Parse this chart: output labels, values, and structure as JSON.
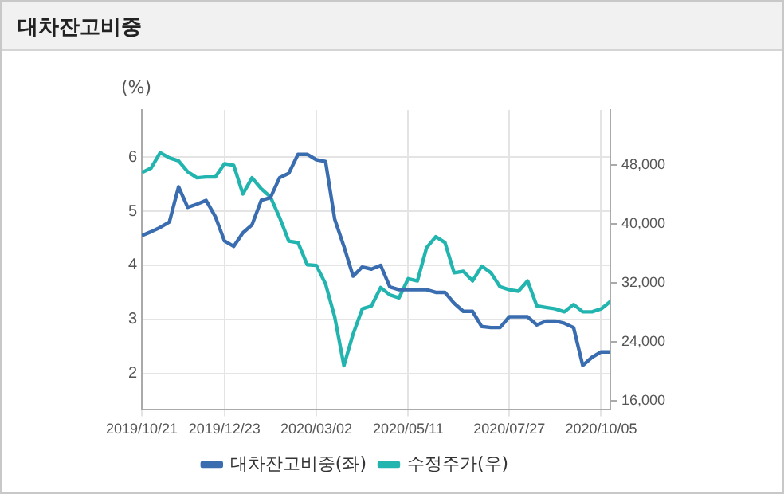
{
  "chart_data": {
    "type": "line",
    "title": "대차잔고비중",
    "ylabel": "(%)",
    "x": [
      "2019-10-21",
      "2019-10-28",
      "2019-11-04",
      "2019-11-11",
      "2019-11-18",
      "2019-11-25",
      "2019-12-02",
      "2019-12-09",
      "2019-12-16",
      "2019-12-23",
      "2019-12-30",
      "2020-01-06",
      "2020-01-13",
      "2020-01-20",
      "2020-01-27",
      "2020-02-03",
      "2020-02-10",
      "2020-02-17",
      "2020-02-24",
      "2020-03-02",
      "2020-03-09",
      "2020-03-16",
      "2020-03-23",
      "2020-03-30",
      "2020-04-06",
      "2020-04-13",
      "2020-04-20",
      "2020-04-27",
      "2020-05-04",
      "2020-05-11",
      "2020-05-18",
      "2020-05-25",
      "2020-06-01",
      "2020-06-08",
      "2020-06-15",
      "2020-06-22",
      "2020-06-29",
      "2020-07-06",
      "2020-07-13",
      "2020-07-20",
      "2020-07-27",
      "2020-08-03",
      "2020-08-10",
      "2020-08-17",
      "2020-08-24",
      "2020-08-31",
      "2020-09-07",
      "2020-09-14",
      "2020-09-21",
      "2020-09-28",
      "2020-10-05",
      "2020-10-12"
    ],
    "series": [
      {
        "name": "대차잔고비중(좌)",
        "color": "#3a6db0",
        "values": [
          4.55,
          4.62,
          4.7,
          4.8,
          5.45,
          5.07,
          5.13,
          5.2,
          4.9,
          4.45,
          4.35,
          4.6,
          4.75,
          5.2,
          5.25,
          5.62,
          5.7,
          6.05,
          6.05,
          5.95,
          5.92,
          4.85,
          4.35,
          3.8,
          3.97,
          3.93,
          4.0,
          3.6,
          3.55,
          3.55,
          3.55,
          3.55,
          3.5,
          3.5,
          3.3,
          3.15,
          3.15,
          2.87,
          2.85,
          2.85,
          3.05,
          3.05,
          3.05,
          2.9,
          2.97,
          2.97,
          2.93,
          2.85,
          2.15,
          2.3,
          2.4,
          2.4
        ]
      },
      {
        "name": "수정주가(우)",
        "color": "#22b5b0",
        "axis": "y2",
        "values": [
          47000,
          47600,
          49700,
          49000,
          48600,
          47100,
          46300,
          46400,
          46400,
          48200,
          48000,
          44100,
          46300,
          44800,
          43700,
          40900,
          37700,
          37500,
          34500,
          34400,
          31900,
          27400,
          20800,
          25100,
          28500,
          28900,
          31400,
          30400,
          30000,
          32600,
          32300,
          36800,
          38300,
          37500,
          33400,
          33600,
          32300,
          34300,
          33400,
          31500,
          31100,
          30900,
          32300,
          28900,
          28700,
          28500,
          28100,
          29100,
          28100,
          28100,
          28500,
          29500
        ]
      }
    ],
    "xlim": [
      "2019-10-21",
      "2020-10-12"
    ],
    "xticks": [
      {
        "value": "2019-10-21",
        "label": "2019/10/21"
      },
      {
        "value": "2019-12-23",
        "label": "2019/12/23"
      },
      {
        "value": "2020-03-02",
        "label": "2020/03/02"
      },
      {
        "value": "2020-05-11",
        "label": "2020/05/11"
      },
      {
        "value": "2020-07-27",
        "label": "2020/07/27"
      },
      {
        "value": "2020-10-05",
        "label": "2020/10/05"
      }
    ],
    "ylim": [
      1.33,
      6.87
    ],
    "yticks": [
      2,
      3,
      4,
      5,
      6
    ],
    "y2lim": [
      14800,
      55500
    ],
    "y2ticks": [
      {
        "value": 16000,
        "label": "16,000"
      },
      {
        "value": 24000,
        "label": "24,000"
      },
      {
        "value": 32000,
        "label": "32,000"
      },
      {
        "value": 40000,
        "label": "40,000"
      },
      {
        "value": 48000,
        "label": "48,000"
      }
    ],
    "grid": true,
    "legend": "bottom",
    "marker": "none",
    "line_style": "solid"
  }
}
